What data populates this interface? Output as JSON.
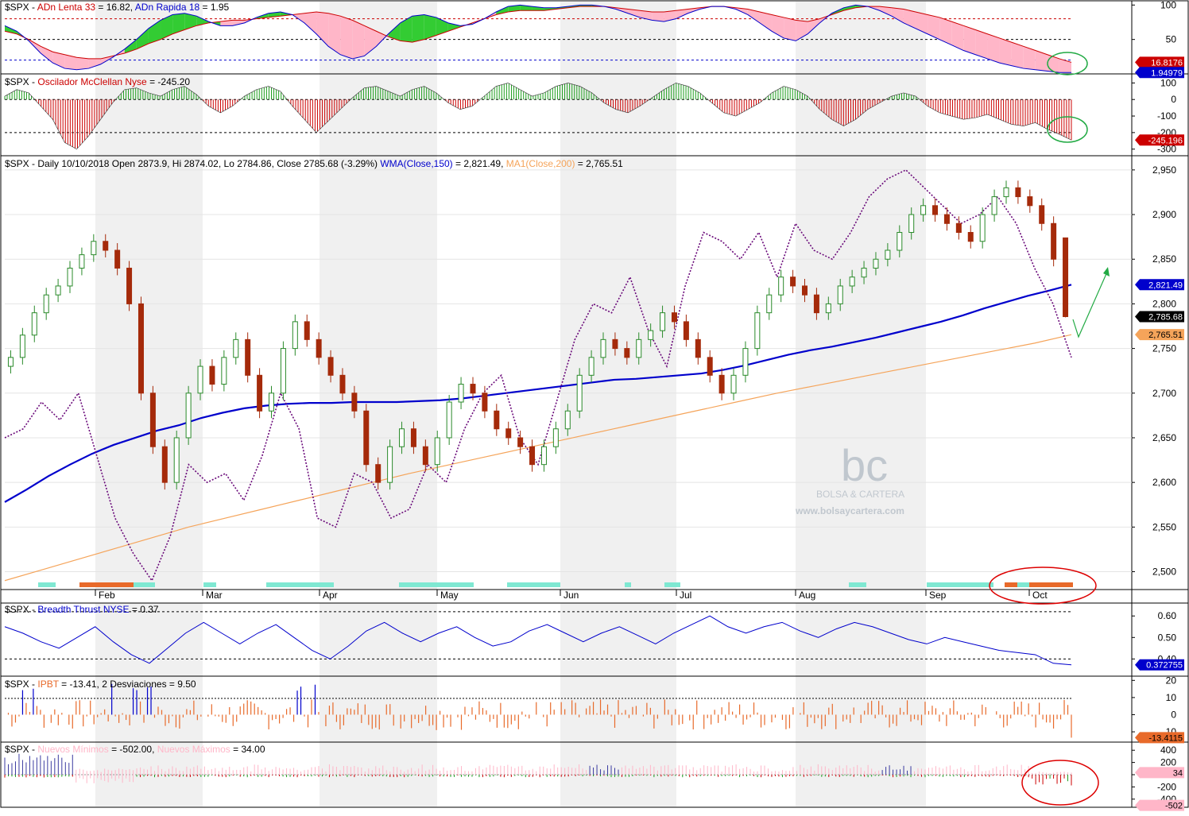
{
  "colors": {
    "background": "#ffffff",
    "panel_border": "#000000",
    "shade": "#f0f0f0",
    "blue": "#0000cc",
    "red": "#cc0000",
    "green": "#1e9e1e",
    "candle_up": "#2a8a2a",
    "candle_down": "#a52a0a",
    "orange": "#f5a45a",
    "purple": "#6a0a7a",
    "pink": "#ffb6c8",
    "bright_green": "#33cc33",
    "teal": "#7fe8d2",
    "orange_bar": "#e86a2a",
    "annotation_green": "#22aa44",
    "annotation_red": "#dd0000"
  },
  "months": [
    "Feb",
    "Mar",
    "Apr",
    "May",
    "Jun",
    "Jul",
    "Aug",
    "Sep",
    "Oct"
  ],
  "watermark": {
    "letters": "bc",
    "name": "BOLSA & CARTERA",
    "url": "www.bolsaycartera.com"
  },
  "panels": {
    "adn": {
      "symbol": "$SPX - ",
      "label1": "ADn Lenta 33",
      "value1": " = 16.82, ",
      "label2": "ADn Rapida 18",
      "value2": " = 1.95",
      "ticks": [
        "100",
        "50"
      ],
      "badge1": "16.8176",
      "badge2": "1.94979"
    },
    "mcclellan": {
      "symbol": "$SPX - ",
      "label": "Oscilador McClellan Nyse",
      "value": " = -245.20",
      "ticks": [
        "100",
        "0",
        "-100",
        "-200",
        "-300"
      ],
      "badge": "-245.196"
    },
    "price": {
      "symbol": "$SPX - Daily 10/10/2018 Open 2873.9, Hi 2874.02, Lo 2784.86, Close 2785.68 (-3.29%) ",
      "wma_label": "WMA(Close,150)",
      "wma_value": " = 2,821.49, ",
      "ma_label": "MA1(Close,200)",
      "ma_value": " = 2,765.51",
      "ticks": [
        "2,950",
        "2,900",
        "2,850",
        "2,800",
        "2,750",
        "2,700",
        "2,650",
        "2,600",
        "2,550",
        "2,500"
      ],
      "badge_wma": "2,821.49",
      "badge_close": "2,785.68",
      "badge_ma": "2,765.51"
    },
    "breadth": {
      "symbol": "$SPX - ",
      "label": "Breadth Thrust NYSE",
      "value": " = 0.37",
      "ticks": [
        "0.60",
        "0.50",
        "0.40"
      ],
      "badge": "0.372755"
    },
    "ipbt": {
      "symbol": "$SPX - ",
      "label": "IPBT",
      "value": " = -13.41,    2 Desviaciones = 9.50",
      "ticks": [
        "20",
        "10",
        "0",
        "-10"
      ],
      "badge": "-13.4115"
    },
    "newlows": {
      "symbol": "$SPX - ",
      "label1": "Nuevos Mínimos",
      "value1": " = -502.00, ",
      "label2": "Nuevos Máximos",
      "value2": " = 34.00",
      "ticks": [
        "400",
        "200",
        "0",
        "-200",
        "-400"
      ],
      "badge1": "34",
      "badge2": "-502"
    }
  },
  "chart_data": [
    {
      "type": "area",
      "title": "$SPX - ADn Lenta 33 = 16.82, ADn Rapida 18 = 1.95",
      "ylim": [
        0,
        100
      ],
      "reference_lines": [
        80,
        50,
        20
      ],
      "series": [
        {
          "name": "ADn Lenta 33",
          "last": 16.82,
          "values": [
            62,
            58,
            50,
            40,
            32,
            28,
            24,
            22,
            22,
            26,
            30,
            36,
            44,
            50,
            58,
            64,
            70,
            74,
            76,
            78,
            78,
            80,
            82,
            84,
            86,
            88,
            90,
            88,
            84,
            78,
            70,
            62,
            54,
            48,
            46,
            50,
            56,
            62,
            68,
            74,
            80,
            86,
            90,
            92,
            92,
            92,
            94,
            96,
            98,
            98,
            98,
            96,
            94,
            92,
            90,
            90,
            92,
            94,
            96,
            98,
            98,
            96,
            94,
            90,
            86,
            82,
            78,
            76,
            80,
            86,
            92,
            96,
            98,
            98,
            96,
            94,
            90,
            86,
            82,
            76,
            70,
            64,
            58,
            52,
            46,
            40,
            34,
            28,
            22,
            16.8
          ]
        },
        {
          "name": "ADn Rapida 18",
          "last": 1.95,
          "values": [
            70,
            62,
            48,
            30,
            16,
            8,
            6,
            8,
            14,
            24,
            36,
            50,
            66,
            78,
            86,
            88,
            84,
            76,
            70,
            70,
            74,
            82,
            88,
            90,
            86,
            74,
            58,
            40,
            28,
            22,
            26,
            40,
            58,
            74,
            84,
            86,
            82,
            74,
            70,
            72,
            80,
            90,
            98,
            100,
            98,
            96,
            96,
            98,
            100,
            100,
            98,
            94,
            88,
            82,
            78,
            76,
            80,
            88,
            94,
            98,
            98,
            94,
            86,
            74,
            62,
            52,
            48,
            58,
            74,
            88,
            96,
            100,
            98,
            92,
            84,
            74,
            66,
            58,
            50,
            42,
            34,
            28,
            22,
            16,
            12,
            8,
            6,
            4,
            2,
            1.95
          ]
        }
      ]
    },
    {
      "type": "bar",
      "title": "$SPX - Oscilador McClellan Nyse = -245.20",
      "ylim": [
        -350,
        150
      ],
      "reference_lines": [
        -200
      ],
      "series": [
        {
          "name": "Oscilador McClellan Nyse",
          "last": -245.2,
          "values": [
            20,
            60,
            40,
            -40,
            -120,
            -260,
            -300,
            -220,
            -120,
            -20,
            60,
            70,
            40,
            20,
            60,
            80,
            30,
            -40,
            -80,
            -40,
            20,
            60,
            80,
            50,
            -40,
            -120,
            -200,
            -130,
            -60,
            10,
            70,
            80,
            50,
            20,
            60,
            80,
            40,
            -20,
            -60,
            -40,
            20,
            80,
            100,
            60,
            20,
            40,
            80,
            100,
            80,
            40,
            -20,
            -60,
            -80,
            -40,
            10,
            60,
            100,
            80,
            40,
            -20,
            -80,
            -100,
            -60,
            -20,
            40,
            80,
            60,
            20,
            -60,
            -120,
            -160,
            -120,
            -60,
            -20,
            20,
            40,
            20,
            -40,
            -80,
            -100,
            -120,
            -110,
            -90,
            -120,
            -150,
            -160,
            -140,
            -180,
            -210,
            -245.2
          ]
        }
      ]
    },
    {
      "type": "candlestick",
      "title": "$SPX - Daily 10/10/2018 Open 2873.9, Hi 2874.02, Lo 2784.86, Close 2785.68 (-3.29%)",
      "x_labels": [
        "Feb",
        "Mar",
        "Apr",
        "May",
        "Jun",
        "Jul",
        "Aug",
        "Sep",
        "Oct"
      ],
      "ylim": [
        2480,
        2960
      ],
      "last_bar": {
        "date": "10/10/2018",
        "open": 2873.9,
        "high": 2874.02,
        "low": 2784.86,
        "close": 2785.68,
        "change_pct": -3.29
      },
      "closes": [
        2740,
        2765,
        2790,
        2810,
        2820,
        2840,
        2855,
        2870,
        2860,
        2840,
        2800,
        2700,
        2640,
        2600,
        2650,
        2700,
        2730,
        2710,
        2740,
        2760,
        2720,
        2680,
        2700,
        2750,
        2780,
        2760,
        2740,
        2720,
        2700,
        2680,
        2620,
        2600,
        2640,
        2660,
        2640,
        2620,
        2650,
        2690,
        2710,
        2700,
        2680,
        2660,
        2650,
        2640,
        2620,
        2640,
        2660,
        2680,
        2720,
        2740,
        2760,
        2750,
        2740,
        2760,
        2770,
        2790,
        2780,
        2760,
        2740,
        2720,
        2700,
        2720,
        2750,
        2790,
        2810,
        2830,
        2820,
        2810,
        2790,
        2800,
        2820,
        2830,
        2840,
        2850,
        2860,
        2880,
        2900,
        2910,
        2900,
        2890,
        2880,
        2870,
        2900,
        2920,
        2930,
        2920,
        2910,
        2890,
        2850,
        2785.68
      ],
      "series": [
        {
          "name": "WMA(Close,150)",
          "last": 2821.49,
          "values": [
            2578,
            2592,
            2607,
            2620,
            2632,
            2642,
            2650,
            2658,
            2664,
            2672,
            2678,
            2683,
            2686,
            2688,
            2689,
            2689,
            2690,
            2690,
            2690,
            2691,
            2692,
            2694,
            2697,
            2700,
            2703,
            2706,
            2709,
            2712,
            2715,
            2716,
            2718,
            2720,
            2722,
            2726,
            2731,
            2737,
            2743,
            2748,
            2752,
            2757,
            2762,
            2768,
            2774,
            2780,
            2787,
            2795,
            2802,
            2809,
            2815,
            2821.49
          ]
        },
        {
          "name": "MA1(Close,200)",
          "last": 2765.51,
          "values": [
            2490,
            2502,
            2514,
            2526,
            2538,
            2550,
            2560,
            2570,
            2580,
            2590,
            2600,
            2610,
            2619,
            2628,
            2637,
            2646,
            2655,
            2664,
            2673,
            2682,
            2691,
            2700,
            2708,
            2716,
            2724,
            2732,
            2740,
            2748,
            2756,
            2765.51
          ]
        },
        {
          "name": "purple dotted",
          "values": [
            2650,
            2660,
            2690,
            2670,
            2700,
            2630,
            2560,
            2520,
            2490,
            2540,
            2620,
            2600,
            2610,
            2580,
            2630,
            2700,
            2660,
            2560,
            2550,
            2610,
            2600,
            2560,
            2570,
            2620,
            2600,
            2660,
            2700,
            2720,
            2650,
            2620,
            2690,
            2760,
            2800,
            2790,
            2830,
            2770,
            2730,
            2820,
            2880,
            2870,
            2850,
            2880,
            2830,
            2890,
            2860,
            2850,
            2880,
            2920,
            2940,
            2950,
            2930,
            2910,
            2890,
            2900,
            2920,
            2890,
            2840,
            2800,
            2740
          ]
        }
      ]
    },
    {
      "type": "line",
      "title": "$SPX - Breadth Thrust NYSE = 0.37",
      "ylim": [
        0.32,
        0.64
      ],
      "reference_lines": [
        0.62,
        0.4
      ],
      "series": [
        {
          "name": "Breadth Thrust NYSE",
          "last": 0.372755,
          "values": [
            0.55,
            0.52,
            0.48,
            0.45,
            0.5,
            0.55,
            0.48,
            0.42,
            0.38,
            0.45,
            0.52,
            0.57,
            0.52,
            0.47,
            0.52,
            0.56,
            0.5,
            0.44,
            0.4,
            0.46,
            0.53,
            0.57,
            0.52,
            0.48,
            0.52,
            0.55,
            0.5,
            0.46,
            0.48,
            0.53,
            0.56,
            0.52,
            0.48,
            0.52,
            0.55,
            0.51,
            0.47,
            0.52,
            0.56,
            0.6,
            0.55,
            0.52,
            0.55,
            0.57,
            0.53,
            0.5,
            0.54,
            0.57,
            0.55,
            0.52,
            0.49,
            0.47,
            0.5,
            0.48,
            0.46,
            0.44,
            0.43,
            0.42,
            0.38,
            0.372755
          ]
        }
      ]
    },
    {
      "type": "bar",
      "title": "$SPX - IPBT = -13.41, 2 Desviaciones = 9.50",
      "ylim": [
        -15,
        22
      ],
      "reference_lines": [
        9.5,
        -9.5
      ],
      "series": [
        {
          "name": "IPBT",
          "last": -13.41
        }
      ]
    },
    {
      "type": "bar",
      "title": "$SPX - Nuevos Mínimos = -502.00, Nuevos Máximos = 34.00",
      "ylim": [
        -500,
        500
      ],
      "series": [
        {
          "name": "Nuevos Mínimos",
          "last": -502.0
        },
        {
          "name": "Nuevos Máximos",
          "last": 34.0
        }
      ]
    }
  ]
}
